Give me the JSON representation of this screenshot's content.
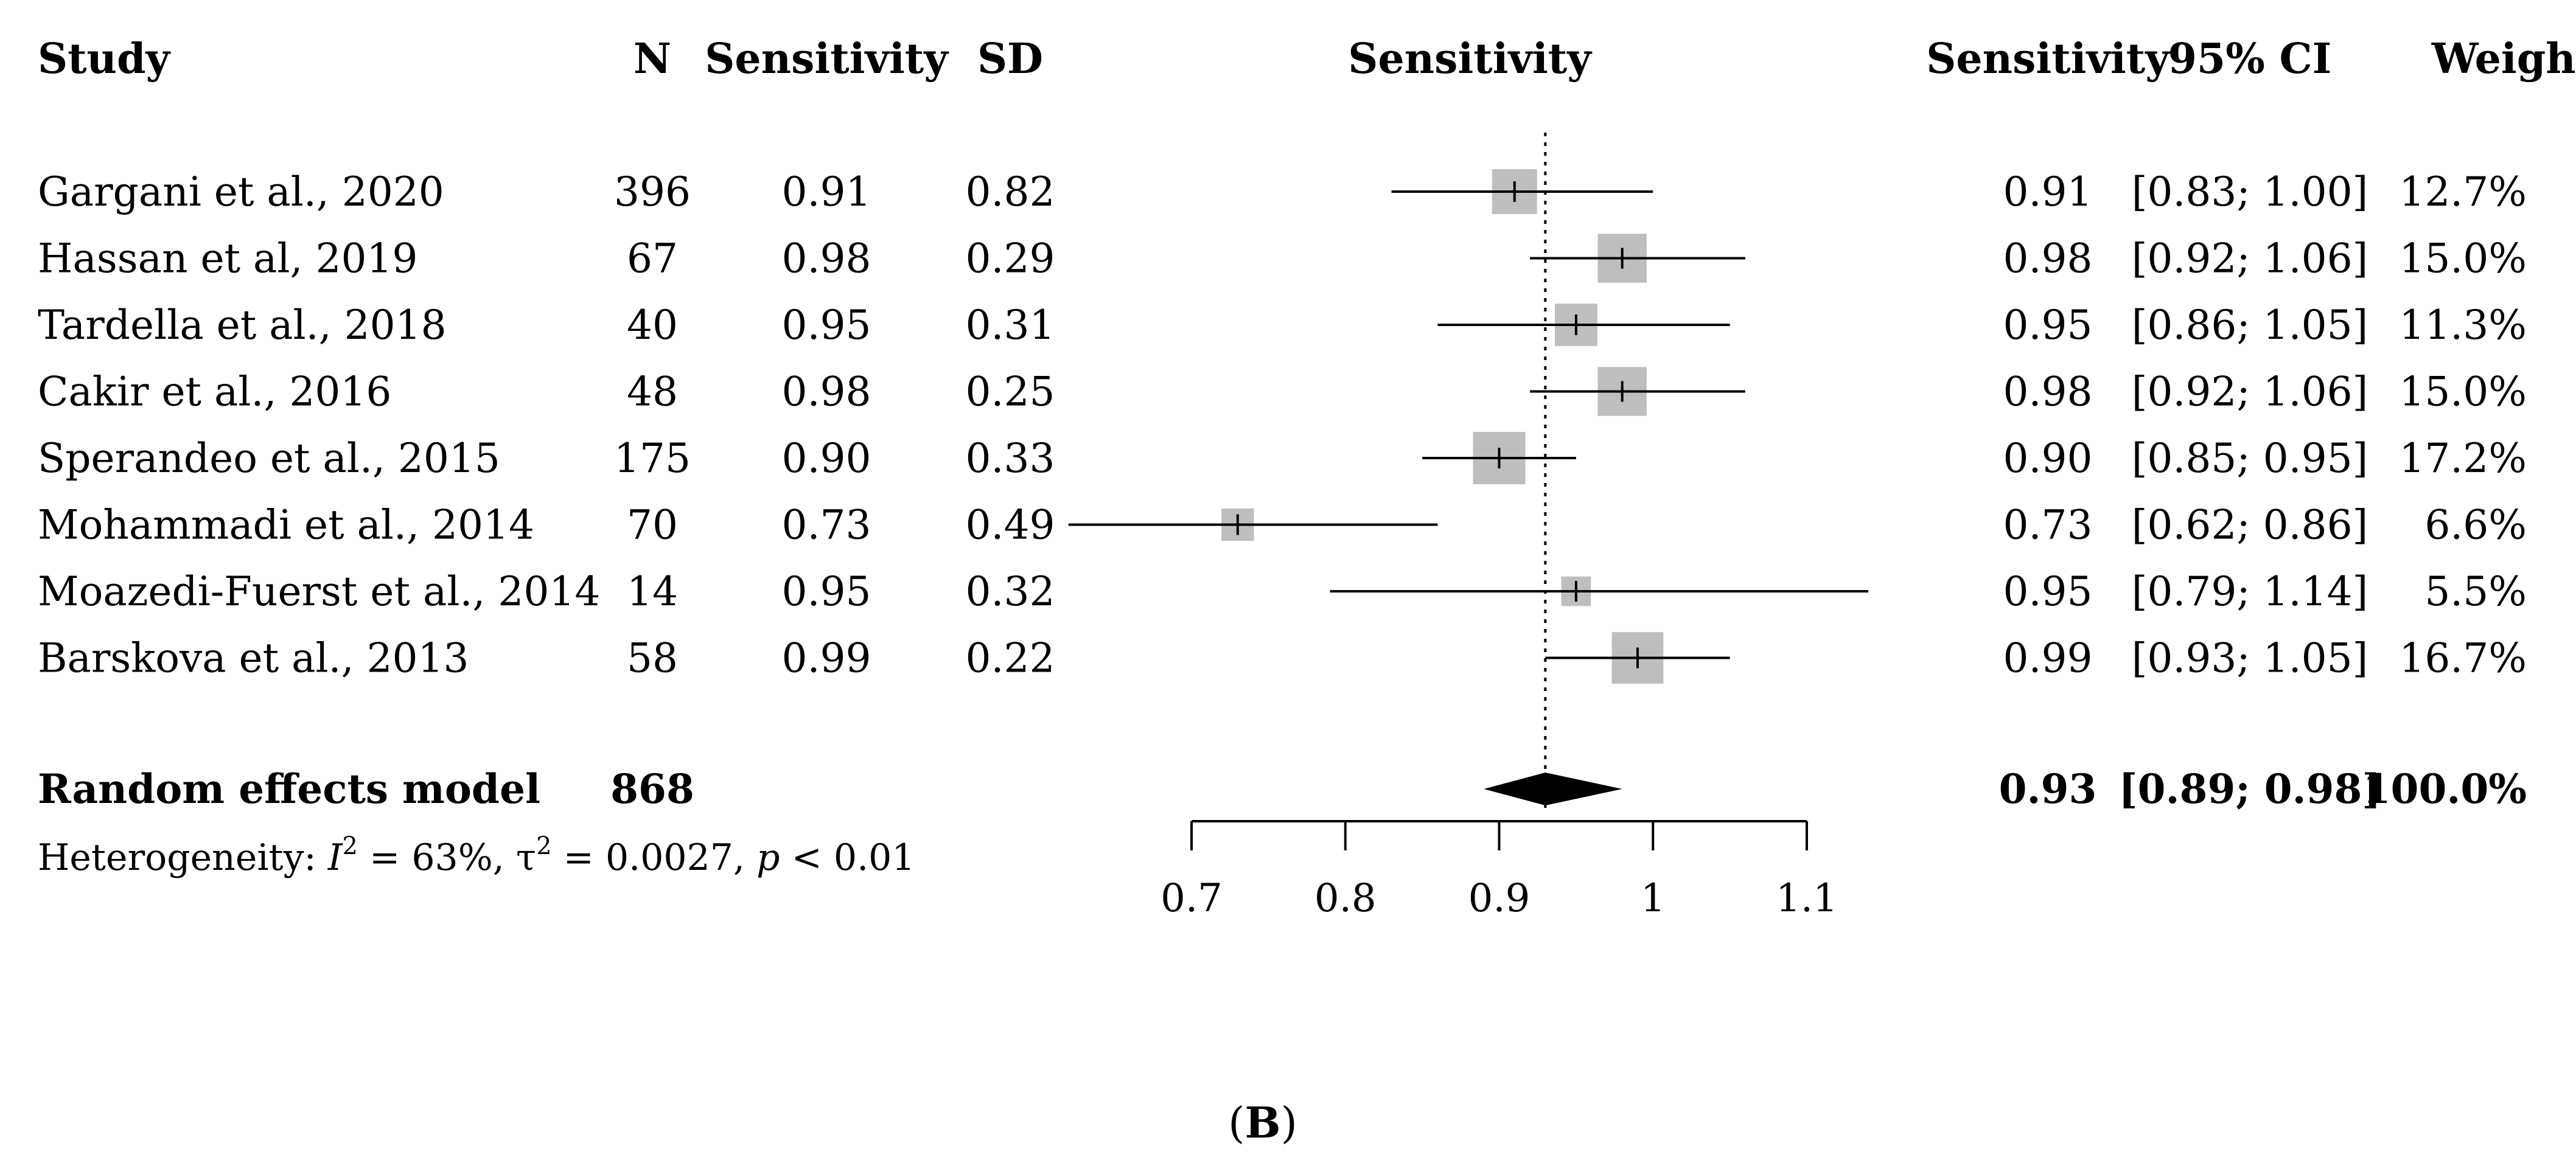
{
  "chart_data": {
    "type": "forest",
    "title": "",
    "xlabel": "Sensitivity",
    "xlim": [
      0.7,
      1.1
    ],
    "x_ticks": [
      "0.7",
      "0.8",
      "0.9",
      "1",
      "1.1"
    ],
    "reference_line": 0.93,
    "columns": {
      "study": "Study",
      "n": "N",
      "sensitivity": "Sensitivity",
      "sd": "SD",
      "plot": "Sensitivity",
      "estimate": "Sensitivity",
      "ci": "95% CI",
      "weight": "Weight"
    },
    "studies": [
      {
        "study": "Gargani et al., 2020",
        "n": "396",
        "sensitivity": "0.91",
        "sd": "0.82",
        "estimate": 0.91,
        "lower": 0.83,
        "upper": 1.0,
        "weight_value": 12.7,
        "est_label": "0.91",
        "ci_label": "[0.83; 1.00]",
        "weight": "12.7%"
      },
      {
        "study": "Hassan et al, 2019",
        "n": "67",
        "sensitivity": "0.98",
        "sd": "0.29",
        "estimate": 0.98,
        "lower": 0.92,
        "upper": 1.06,
        "weight_value": 15.0,
        "est_label": "0.98",
        "ci_label": "[0.92; 1.06]",
        "weight": "15.0%"
      },
      {
        "study": "Tardella et al., 2018",
        "n": "40",
        "sensitivity": "0.95",
        "sd": "0.31",
        "estimate": 0.95,
        "lower": 0.86,
        "upper": 1.05,
        "weight_value": 11.3,
        "est_label": "0.95",
        "ci_label": "[0.86; 1.05]",
        "weight": "11.3%"
      },
      {
        "study": "Cakir et al., 2016",
        "n": "48",
        "sensitivity": "0.98",
        "sd": "0.25",
        "estimate": 0.98,
        "lower": 0.92,
        "upper": 1.06,
        "weight_value": 15.0,
        "est_label": "0.98",
        "ci_label": "[0.92; 1.06]",
        "weight": "15.0%"
      },
      {
        "study": "Sperandeo et al., 2015",
        "n": "175",
        "sensitivity": "0.90",
        "sd": "0.33",
        "estimate": 0.9,
        "lower": 0.85,
        "upper": 0.95,
        "weight_value": 17.2,
        "est_label": "0.90",
        "ci_label": "[0.85; 0.95]",
        "weight": "17.2%"
      },
      {
        "study": "Mohammadi et al., 2014",
        "n": "70",
        "sensitivity": "0.73",
        "sd": "0.49",
        "estimate": 0.73,
        "lower": 0.62,
        "upper": 0.86,
        "weight_value": 6.6,
        "est_label": "0.73",
        "ci_label": "[0.62; 0.86]",
        "weight": "6.6%"
      },
      {
        "study": "Moazedi-Fuerst et al., 2014",
        "n": "14",
        "sensitivity": "0.95",
        "sd": "0.32",
        "estimate": 0.95,
        "lower": 0.79,
        "upper": 1.14,
        "weight_value": 5.5,
        "est_label": "0.95",
        "ci_label": "[0.79; 1.14]",
        "weight": "5.5%"
      },
      {
        "study": "Barskova et al., 2013",
        "n": "58",
        "sensitivity": "0.99",
        "sd": "0.22",
        "estimate": 0.99,
        "lower": 0.93,
        "upper": 1.05,
        "weight_value": 16.7,
        "est_label": "0.99",
        "ci_label": "[0.93; 1.05]",
        "weight": "16.7%"
      }
    ],
    "pooled": {
      "label": "Random effects model",
      "n": "868",
      "estimate": 0.93,
      "lower": 0.89,
      "upper": 0.98,
      "est_label": "0.93",
      "ci_label": "[0.89; 0.98]",
      "weight": "100.0%"
    },
    "heterogeneity": {
      "prefix": "Heterogeneity: ",
      "i2_symbol": "I",
      "sup": "2",
      "i2_value": " = 63%, ",
      "tau_symbol": "τ",
      "tau_value": " = 0.0027, ",
      "p_symbol": "p",
      "p_value": " < 0.01"
    },
    "panel_label": {
      "open": "(",
      "letter": "B",
      "close": ")"
    },
    "colors": {
      "box": "#bebebe",
      "line": "#000000",
      "diamond": "#000000"
    }
  }
}
